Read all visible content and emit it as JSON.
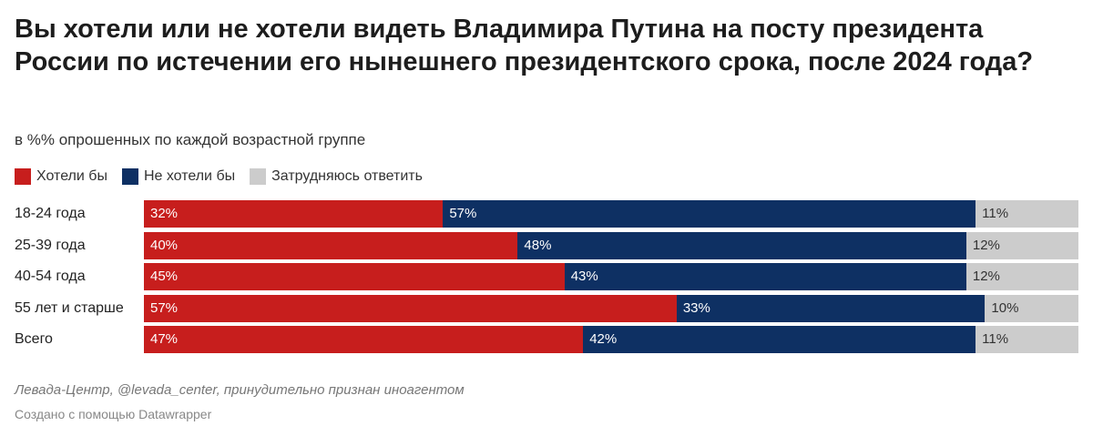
{
  "chart_data": {
    "type": "bar",
    "orientation": "horizontal",
    "stacked": true,
    "title": "Вы хотели или не хотели видеть Владимира Путина на посту президента России по истечении его нынешнего президентского срока, после 2024 года?",
    "subtitle": "в %% опрошенных по каждой возрастной группе",
    "categories": [
      "18-24 года",
      "25-39 года",
      "40-54 года",
      "55 лет и старше",
      "Всего"
    ],
    "series": [
      {
        "name": "Хотели бы",
        "color": "#c71e1d",
        "values": [
          32,
          40,
          45,
          57,
          47
        ]
      },
      {
        "name": "Не хотели бы",
        "color": "#0e3063",
        "values": [
          57,
          48,
          43,
          33,
          42
        ]
      },
      {
        "name": "Затрудняюсь ответить",
        "color": "#cccccc",
        "values": [
          11,
          12,
          12,
          10,
          11
        ]
      }
    ],
    "value_suffix": "%",
    "legend_position": "top-left",
    "source": "Левада-Центр, @levada_center, принудительно признан иноагентом",
    "credit": "Создано с помощью Datawrapper"
  }
}
